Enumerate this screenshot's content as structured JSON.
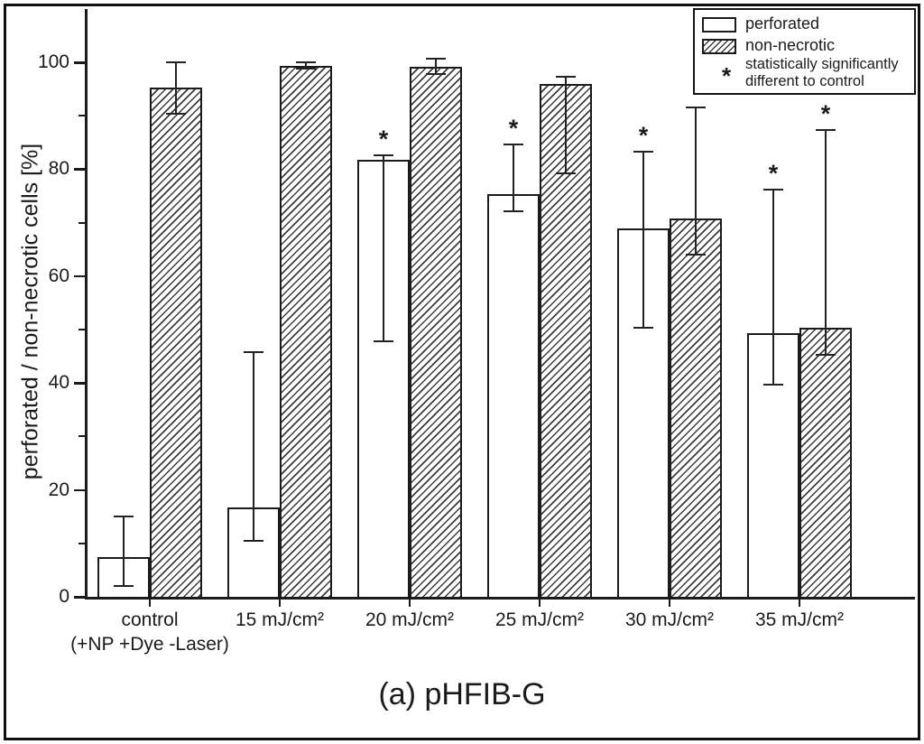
{
  "figure": {
    "title": "(a) pHFIB-G"
  },
  "chart_data": {
    "type": "bar",
    "title": "(a) pHFIB-G",
    "xlabel": "",
    "ylabel": "perforated / non-necrotic cells [%]",
    "ylim": [
      0,
      107
    ],
    "grid": false,
    "legend_position": "top-right",
    "ytick_major": [
      0,
      20,
      40,
      60,
      80,
      100
    ],
    "ytick_minor": [
      10,
      30,
      50,
      70,
      90
    ],
    "categories": [
      "control",
      "15 mJ/cm²",
      "20 mJ/cm²",
      "25 mJ/cm²",
      "30 mJ/cm²",
      "35 mJ/cm²"
    ],
    "category_sublabels": [
      "(+NP +Dye -Laser)",
      "",
      "",
      "",
      "",
      ""
    ],
    "series": [
      {
        "name": "perforated",
        "style": "plain",
        "values": [
          7.5,
          16.8,
          81.7,
          75.3,
          68.9,
          49.3
        ],
        "err_low": [
          2.1,
          10.4,
          47.8,
          72.2,
          50.4,
          39.7
        ],
        "err_high": [
          15.1,
          45.7,
          82.6,
          84.7,
          83.2,
          76.2
        ],
        "significant": [
          false,
          false,
          true,
          true,
          true,
          true
        ]
      },
      {
        "name": "non-necrotic",
        "style": "hatched",
        "values": [
          95.2,
          99.4,
          99.2,
          95.9,
          70.7,
          50.3
        ],
        "err_low": [
          90.4,
          98.8,
          97.8,
          79.3,
          64.1,
          45.2
        ],
        "err_high": [
          100.0,
          100.0,
          100.6,
          97.3,
          91.6,
          87.4
        ],
        "significant": [
          false,
          false,
          false,
          false,
          false,
          true
        ]
      }
    ],
    "legend": {
      "entries": [
        {
          "label": "perforated",
          "swatch": "plain"
        },
        {
          "label": "non-necrotic",
          "swatch": "hatched"
        }
      ],
      "note_symbol": "*",
      "note_lines": [
        "statistically significantly",
        "different to control"
      ]
    },
    "colors": {
      "line": "#1b1b1b",
      "background": "#ffffff"
    }
  }
}
